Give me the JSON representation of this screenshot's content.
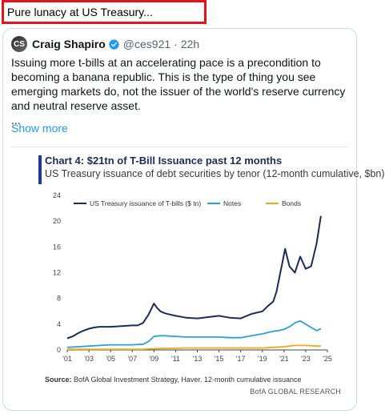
{
  "banner": {
    "text": "Pure lunacy at US Treasury..."
  },
  "tweet": {
    "author": "Craig Shapiro",
    "avatar_initials": "CS",
    "verified_icon": "verified-badge-icon",
    "handle": "@ces921",
    "separator": "·",
    "time": "22h",
    "text": "Issuing more t-bills at an accelerating pace is a precondition to becoming a banana republic. This is the type of thing you see emerging markets do, not the issuer of the world's reserve currency and neutral reserve asset.",
    "ellipsis": "...",
    "show_more": "Show more"
  },
  "colors": {
    "tbills": "#1c2b5a",
    "notes": "#2aa0d6",
    "bonds": "#f0a818",
    "accent": "#1d9bf0",
    "banner_border": "#e4141b"
  },
  "chart_data": {
    "type": "line",
    "title": "Chart 4: $21tn of T-Bill Issuance past 12 months",
    "subtitle": "US Treasury issuance of debt securities by tenor (12-month cumulative, $bn)",
    "xlabel": "",
    "ylabel": "",
    "xlim": [
      2001,
      2025
    ],
    "ylim": [
      0,
      24
    ],
    "y_ticks": [
      0,
      4,
      8,
      12,
      16,
      20,
      24
    ],
    "x_ticks": [
      "'01",
      "'03",
      "'05",
      "'07",
      "'09",
      "'11",
      "'13",
      "'15",
      "'17",
      "'19",
      "'21",
      "'23",
      "'25"
    ],
    "x_tick_years": [
      2001,
      2003,
      2005,
      2007,
      2009,
      2011,
      2013,
      2015,
      2017,
      2019,
      2021,
      2023,
      2025
    ],
    "legend_position": "top",
    "grid": false,
    "series": [
      {
        "name": "US Treasury issuance of T-bills ($ tn)",
        "x": [
          2001,
          2001.5,
          2002,
          2002.5,
          2003,
          2003.5,
          2004,
          2005,
          2006,
          2007,
          2007.5,
          2008,
          2008.5,
          2009,
          2009.3,
          2009.6,
          2010,
          2010.5,
          2011,
          2012,
          2013,
          2014,
          2015,
          2016,
          2017,
          2018,
          2019,
          2019.5,
          2020,
          2020.3,
          2020.6,
          2020.9,
          2021.1,
          2021.5,
          2022,
          2022.5,
          2023,
          2023.5,
          2024,
          2024.4
        ],
        "values": [
          1.8,
          2.1,
          2.6,
          3.0,
          3.3,
          3.5,
          3.6,
          3.6,
          3.7,
          3.8,
          3.8,
          4.2,
          5.5,
          7.2,
          6.5,
          6.0,
          5.7,
          5.5,
          5.3,
          5.0,
          4.9,
          5.1,
          5.3,
          5.0,
          4.9,
          5.6,
          6.0,
          6.8,
          7.5,
          9.0,
          11.5,
          14.0,
          15.7,
          13.0,
          12.0,
          14.5,
          12.6,
          13.0,
          16.5,
          20.8
        ]
      },
      {
        "name": "Notes",
        "x": [
          2001,
          2002,
          2003,
          2004,
          2005,
          2006,
          2007,
          2008,
          2008.5,
          2009,
          2009.5,
          2010,
          2011,
          2012,
          2013,
          2014,
          2015,
          2016,
          2017,
          2018,
          2019,
          2020,
          2020.5,
          2021,
          2021.5,
          2022,
          2022.5,
          2023,
          2023.5,
          2024,
          2024.4
        ],
        "values": [
          0.4,
          0.5,
          0.6,
          0.7,
          0.8,
          0.8,
          0.8,
          0.9,
          1.3,
          2.1,
          2.2,
          2.2,
          2.1,
          2.0,
          2.0,
          2.0,
          2.0,
          1.9,
          1.9,
          2.2,
          2.5,
          2.9,
          3.0,
          3.2,
          3.6,
          4.2,
          4.5,
          4.0,
          3.5,
          3.0,
          3.3
        ]
      },
      {
        "name": "Bonds",
        "x": [
          2001,
          2004,
          2008,
          2009,
          2012,
          2016,
          2019,
          2020,
          2021,
          2022,
          2023,
          2024,
          2024.4
        ],
        "values": [
          0.1,
          0.1,
          0.1,
          0.2,
          0.3,
          0.3,
          0.3,
          0.4,
          0.5,
          0.7,
          0.7,
          0.6,
          0.6
        ]
      }
    ],
    "source_label": "Source:",
    "source_text": "BofA Global Investment Strategy, Haver. 12-month cumulative issuance",
    "attribution": "BofA GLOBAL RESEARCH"
  }
}
